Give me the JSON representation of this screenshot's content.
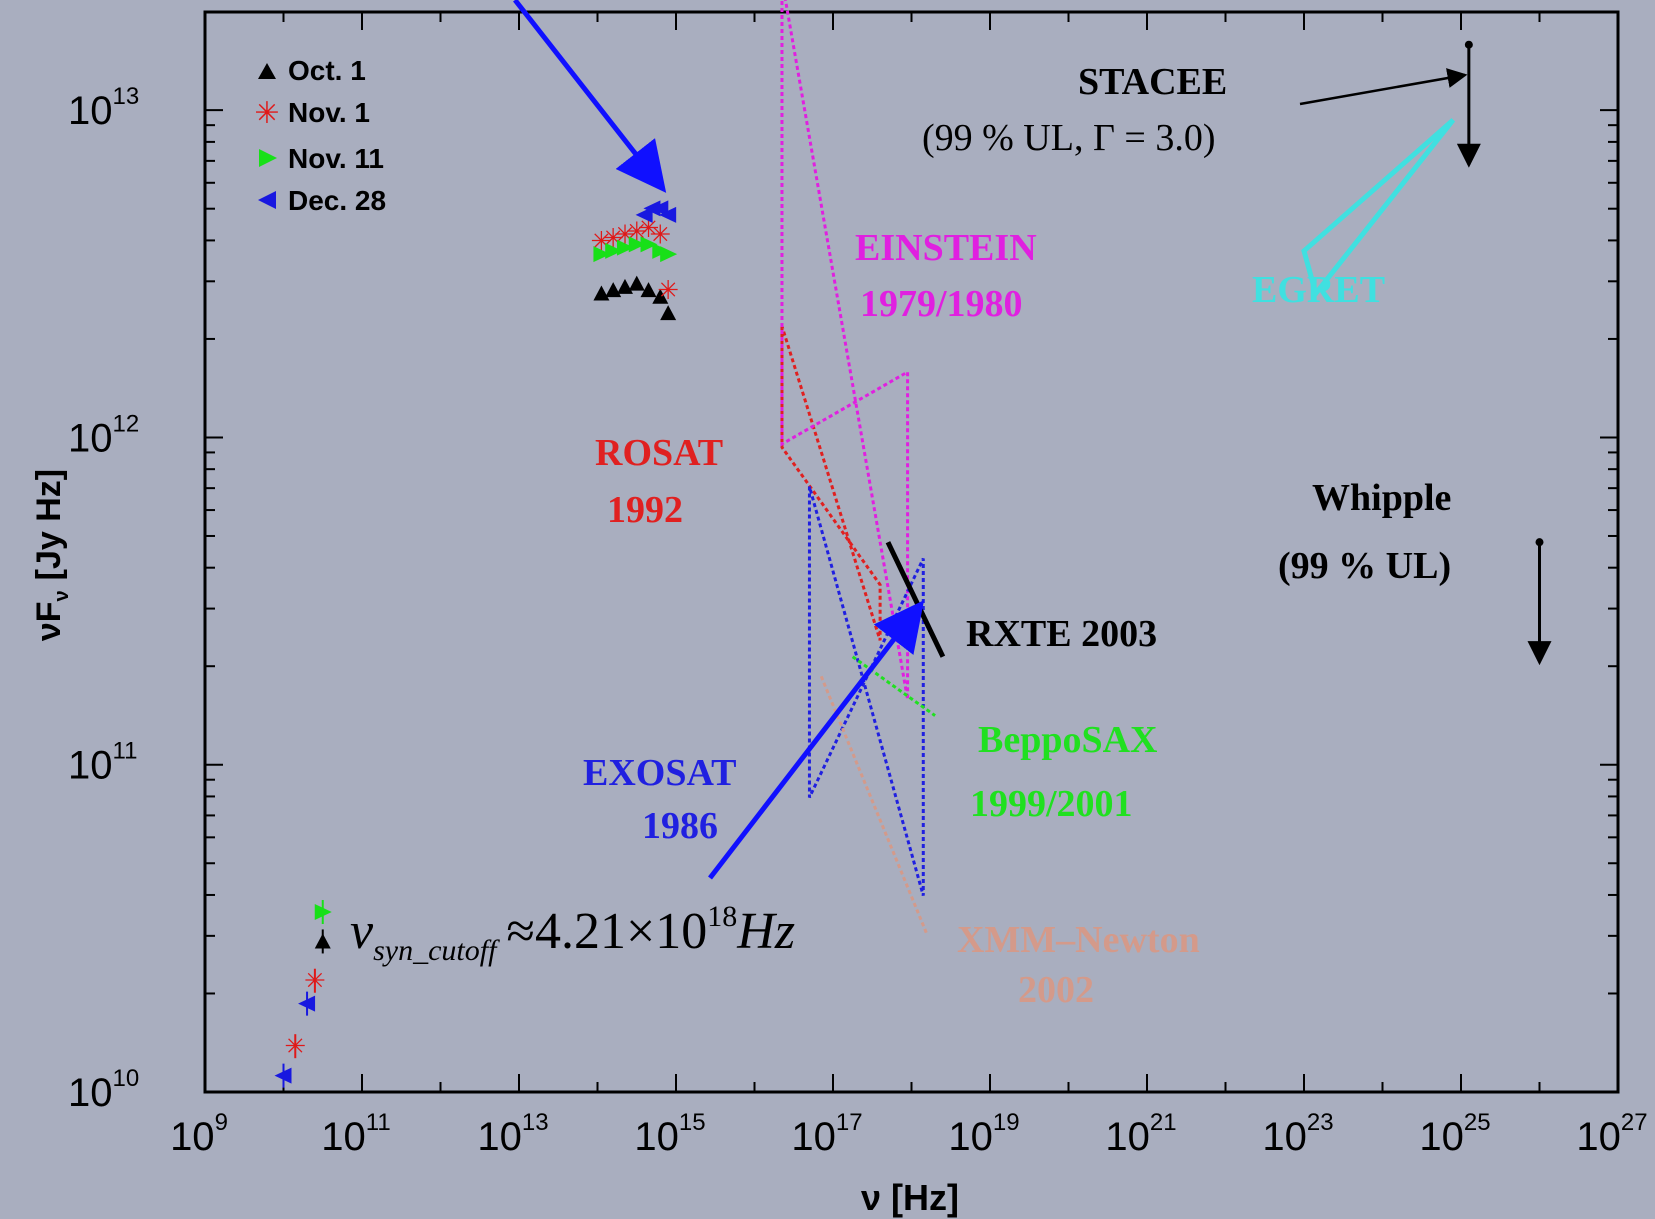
{
  "chart_data": {
    "type": "scatter",
    "title": "",
    "xlabel": "ν [Hz]",
    "ylabel": "νF",
    "ylabel_sub": "ν",
    "ylabel_unit": "[Jy Hz]",
    "x_log_range": [
      9,
      27
    ],
    "y_log_range": [
      10,
      13.3
    ],
    "x_scale": "log",
    "y_scale": "log",
    "x_ticks": [
      9,
      11,
      13,
      15,
      17,
      19,
      21,
      23,
      25,
      27
    ],
    "y_ticks": [
      10,
      11,
      12,
      13
    ],
    "tick_base": "10",
    "grid": false,
    "legend": {
      "placement": "top-left",
      "entries": [
        {
          "label": "Oct. 1",
          "marker": "triangle-up",
          "color": "#000000"
        },
        {
          "label": "Nov. 1",
          "marker": "asterisk",
          "color": "#e01818"
        },
        {
          "label": "Nov. 11",
          "marker": "triangle-right",
          "color": "#18e018"
        },
        {
          "label": "Dec. 28",
          "marker": "triangle-left",
          "color": "#1818e0"
        }
      ]
    },
    "series": [
      {
        "name": "Oct. 1",
        "color": "#000000",
        "optical": {
          "x": [
            14.05,
            14.2,
            14.35,
            14.5,
            14.65,
            14.8,
            14.9
          ],
          "y": [
            12.44,
            12.45,
            12.46,
            12.47,
            12.45,
            12.43,
            12.38
          ]
        },
        "radio": {
          "x": [
            10.5
          ],
          "y": [
            10.46
          ]
        }
      },
      {
        "name": "Nov. 1",
        "color": "#e01818",
        "optical": {
          "x": [
            14.05,
            14.2,
            14.35,
            14.5,
            14.65,
            14.8,
            14.9
          ],
          "y": [
            12.6,
            12.61,
            12.62,
            12.63,
            12.64,
            12.62,
            12.45
          ]
        },
        "radio": {
          "x": [
            10.15,
            10.4
          ],
          "y": [
            10.14,
            10.34
          ]
        }
      },
      {
        "name": "Nov. 11",
        "color": "#18e018",
        "optical": {
          "x": [
            14.05,
            14.2,
            14.35,
            14.5,
            14.65,
            14.8,
            14.9
          ],
          "y": [
            12.56,
            12.57,
            12.58,
            12.59,
            12.59,
            12.57,
            12.56
          ]
        },
        "radio": {
          "x": [
            10.5
          ],
          "y": [
            10.55
          ]
        }
      },
      {
        "name": "Dec. 28",
        "color": "#1818e0",
        "optical": {
          "x": [
            14.6,
            14.7,
            14.8,
            14.9
          ],
          "y": [
            12.68,
            12.7,
            12.7,
            12.68
          ]
        },
        "radio": {
          "x": [
            10.0,
            10.3
          ],
          "y": [
            10.05,
            10.27
          ]
        }
      }
    ],
    "bowties": [
      {
        "name": "ROSAT",
        "color": "#e02020",
        "dash": true,
        "x": [
          16.35,
          16.35,
          17.6,
          17.6
        ],
        "y": [
          12.34,
          11.97,
          11.55,
          11.38
        ]
      },
      {
        "name": "EINSTEIN",
        "color": "#e020e0",
        "dash": true,
        "x": [
          16.35,
          16.35,
          17.95,
          17.95
        ],
        "y": [
          14.2,
          11.98,
          12.2,
          11.2
        ]
      },
      {
        "name": "EXOSAT",
        "color": "#2020e0",
        "dash": true,
        "x": [
          16.7,
          16.7,
          18.15,
          18.15
        ],
        "y": [
          11.85,
          10.9,
          11.63,
          10.6
        ]
      },
      {
        "name": "BeppoSAX",
        "color": "#20e020",
        "dash": true,
        "x": [
          17.25,
          18.3
        ],
        "y": [
          11.33,
          11.15
        ]
      },
      {
        "name": "XMM-Newton",
        "color": "#d49a8a",
        "dash": true,
        "x": [
          16.85,
          18.2
        ],
        "y": [
          11.27,
          10.48
        ]
      },
      {
        "name": "RXTE 2003",
        "color": "#000000",
        "dash": false,
        "x": [
          17.7,
          18.4
        ],
        "y": [
          11.68,
          11.33
        ]
      },
      {
        "name": "EGRET",
        "color": "#40e0e0",
        "dash": false,
        "x": [
          23.0,
          23.15,
          24.9
        ],
        "y": [
          12.57,
          12.44,
          12.97
        ]
      }
    ],
    "upper_limits": [
      {
        "name": "STACEE",
        "color": "#000000",
        "x": 25.1,
        "y": 13.2
      },
      {
        "name": "Whipple",
        "color": "#000000",
        "x": 26.0,
        "y": 11.68
      }
    ],
    "annotations": {
      "rosat": [
        "ROSAT",
        "1992"
      ],
      "einstein": [
        "EINSTEIN",
        "1979/1980"
      ],
      "exosat": [
        "EXOSAT",
        "1986"
      ],
      "beppo": [
        "BeppoSAX",
        "1999/2001"
      ],
      "xmm": [
        "XMM–Newton",
        "2002"
      ],
      "rxte": "RXTE 2003",
      "egret": "EGRET",
      "stacee": [
        "STACEE",
        "(99 % UL, Γ = 3.0)"
      ],
      "whipple": [
        "Whipple",
        "(99 % UL)"
      ],
      "cutoff": {
        "nu": "ν",
        "sub": "syn_cutoff",
        "approx": "≈",
        "value": "4.21×10",
        "exp": "18",
        "unit": "Hz"
      }
    }
  }
}
